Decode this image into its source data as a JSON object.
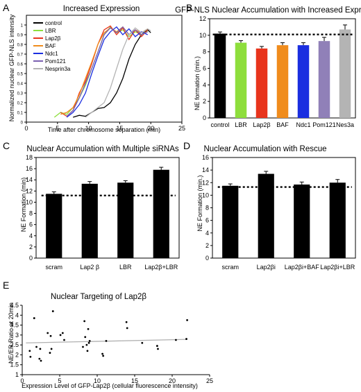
{
  "chart_data": [
    {
      "panel": "A",
      "type": "line",
      "title": "Increased Expression",
      "xlabel": "Time after chromosome separation (min)",
      "ylabel": "Normalized nuclear GFP-NLS intensity",
      "xlim": [
        0,
        25
      ],
      "ylim": [
        0,
        1.1
      ],
      "xticks": [
        0,
        5,
        10,
        15,
        20,
        25
      ],
      "yticks": [
        0,
        0.1,
        0.2,
        0.3,
        0.4,
        0.5,
        0.6,
        0.7,
        0.8,
        0.9,
        1
      ],
      "legend_position": "inside-top-left",
      "series": [
        {
          "name": "control",
          "color": "#000000",
          "x": [
            7.5,
            8.5,
            9.5,
            10.5,
            11.5,
            12.5,
            13.5,
            14.5,
            15.5,
            16.5,
            17.5,
            18.5,
            19.5,
            20
          ],
          "y": [
            0.05,
            0.07,
            0.06,
            0.1,
            0.14,
            0.15,
            0.2,
            0.3,
            0.45,
            0.65,
            0.8,
            0.9,
            0.95,
            0.92
          ]
        },
        {
          "name": "LBR",
          "color": "#8ede3c",
          "x": [
            4.5,
            5.5,
            6.5,
            7.5,
            8.5,
            9.5,
            10.5,
            11.5,
            12.5,
            13.5,
            14.5,
            15.5,
            16.5,
            17.5,
            18.5,
            19.5
          ],
          "y": [
            0.05,
            0.1,
            0.08,
            0.15,
            0.25,
            0.38,
            0.55,
            0.72,
            0.9,
            0.98,
            0.92,
            0.95,
            0.88,
            0.93,
            0.9,
            0.94
          ]
        },
        {
          "name": "Lap2β",
          "color": "#e8341c",
          "x": [
            5.5,
            6.5,
            7.5,
            8.5,
            9.5,
            10.5,
            11.5,
            12.5,
            13.5,
            14.5,
            15.5,
            16.5,
            17.5,
            18.5,
            19.5
          ],
          "y": [
            0.1,
            0.06,
            0.12,
            0.3,
            0.42,
            0.6,
            0.8,
            0.95,
            0.99,
            0.9,
            0.97,
            0.85,
            0.95,
            0.88,
            0.95
          ]
        },
        {
          "name": "BAF",
          "color": "#f08c1c",
          "x": [
            5.5,
            6.5,
            7.5,
            8.5,
            9.5,
            10.5,
            11.5,
            12.5,
            13.5,
            14.5,
            15.5,
            16.5,
            17.5,
            18.5,
            19.5
          ],
          "y": [
            0.08,
            0.1,
            0.15,
            0.28,
            0.45,
            0.62,
            0.8,
            0.92,
            0.97,
            0.93,
            0.98,
            0.9,
            0.95,
            0.92,
            0.96
          ]
        },
        {
          "name": "Ndc1",
          "color": "#1a2ee0",
          "x": [
            6.5,
            7.5,
            8.5,
            9.5,
            10.5,
            11.5,
            12.5,
            13.5,
            14.5,
            15.5,
            16.5,
            17.5,
            18.5,
            19.5
          ],
          "y": [
            0.05,
            0.1,
            0.18,
            0.3,
            0.5,
            0.68,
            0.85,
            0.93,
            0.98,
            0.9,
            0.96,
            0.88,
            0.93,
            0.9
          ]
        },
        {
          "name": "Pom121",
          "color": "#7a60b0",
          "x": [
            6.5,
            7.5,
            8.5,
            9.5,
            10.5,
            11.5,
            12.5,
            13.5,
            14.5,
            15.5,
            16.5,
            17.5,
            18.5,
            19.5
          ],
          "y": [
            0.06,
            0.12,
            0.25,
            0.4,
            0.55,
            0.72,
            0.9,
            0.97,
            0.92,
            0.98,
            0.9,
            0.95,
            0.9,
            0.93
          ]
        },
        {
          "name": "Nesprin3a",
          "color": "#b4b4b4",
          "x": [
            9.5,
            10.5,
            11.5,
            12.5,
            13.5,
            14.5,
            15.5,
            16.5,
            17.5,
            18.5,
            19.5,
            20
          ],
          "y": [
            0.05,
            0.1,
            0.15,
            0.2,
            0.35,
            0.55,
            0.75,
            0.9,
            0.97,
            0.92,
            0.96,
            0.94
          ]
        }
      ]
    },
    {
      "panel": "B",
      "type": "bar",
      "title": "GFP-NLS Nuclear Accumulation with Increased Expres.",
      "xlabel": "",
      "ylabel": "NE formation (min.)",
      "ylim": [
        0,
        12
      ],
      "yticks": [
        0,
        2,
        4,
        6,
        8,
        10,
        12
      ],
      "reference_line": 10.1,
      "categories": [
        "control",
        "LBR",
        "Lap2β",
        "BAF",
        "Ndc1",
        "Pom121",
        "Nes3a"
      ],
      "values": [
        10.2,
        9.1,
        8.4,
        8.8,
        8.8,
        9.3,
        10.7
      ],
      "errors": [
        0.2,
        0.25,
        0.25,
        0.3,
        0.3,
        0.45,
        0.55
      ],
      "colors": [
        "#000000",
        "#8ede3c",
        "#e8341c",
        "#f08c1c",
        "#1a2ee0",
        "#9080b8",
        "#b4b4b4"
      ]
    },
    {
      "panel": "C",
      "type": "bar",
      "title": "Nuclear Accumulation with Multiple siRNAs",
      "xlabel": "",
      "ylabel": "NE Formation (min)",
      "ylim": [
        0,
        18
      ],
      "yticks": [
        0,
        2,
        4,
        6,
        8,
        10,
        12,
        14,
        16,
        18
      ],
      "reference_line": 11.2,
      "categories": [
        "scram",
        "Lap2 β",
        "LBR",
        "Lap2β+LBR"
      ],
      "values": [
        11.5,
        13.3,
        13.5,
        15.8
      ],
      "errors": [
        0.35,
        0.4,
        0.35,
        0.45
      ],
      "colors": [
        "#000000",
        "#000000",
        "#000000",
        "#000000"
      ]
    },
    {
      "panel": "D",
      "type": "bar",
      "title": "Nuclear Accumulation with Rescue",
      "xlabel": "",
      "ylabel": "NE Formation (min.)",
      "ylim": [
        0,
        16
      ],
      "yticks": [
        0,
        2,
        4,
        6,
        8,
        10,
        12,
        14,
        16
      ],
      "reference_line": 11.3,
      "categories": [
        "scram",
        "Lap2βi",
        "Lap2βi+BAF",
        "Lap2βi+LBR"
      ],
      "values": [
        11.5,
        13.4,
        11.7,
        12.0
      ],
      "errors": [
        0.3,
        0.4,
        0.4,
        0.5
      ],
      "colors": [
        "#000000",
        "#000000",
        "#000000",
        "#000000"
      ]
    },
    {
      "panel": "E",
      "type": "scatter",
      "title": "Nuclear Targeting of Lap2β",
      "xlabel": "Expression Level of GFP-Lap2β (cellular fluorescence intensity)",
      "ylabel": "NE/ER Ratio at 20min",
      "xlim": [
        0,
        25
      ],
      "ylim": [
        1,
        4.5
      ],
      "xticks": [
        0,
        5,
        10,
        15,
        20,
        25
      ],
      "yticks": [
        1,
        1.5,
        2,
        2.5,
        3,
        3.5,
        4,
        4.5
      ],
      "trendline": {
        "x": [
          0.5,
          22
        ],
        "y": [
          2.6,
          2.78
        ],
        "color": "#b0b0b0"
      },
      "x": [
        1,
        1.1,
        1.6,
        1.9,
        2.3,
        2.4,
        2.5,
        3.4,
        3.7,
        3.8,
        3.9,
        4.1,
        5.1,
        5.4,
        5.6,
        8.1,
        8.3,
        8.4,
        8.6,
        8.7,
        8.8,
        8.9,
        9.0,
        10.7,
        10.8,
        11.2,
        13.9,
        14.0,
        16.0,
        18.0,
        18.1,
        20.5,
        21.9,
        22.0
      ],
      "y": [
        2.2,
        1.9,
        3.85,
        2.4,
        1.8,
        2.3,
        1.7,
        3.1,
        2.1,
        2.95,
        2.3,
        4.2,
        3.0,
        3.1,
        2.75,
        2.4,
        3.7,
        2.9,
        2.5,
        2.2,
        3.3,
        2.6,
        2.7,
        2.05,
        1.95,
        2.7,
        3.65,
        3.35,
        2.6,
        2.45,
        2.3,
        2.75,
        2.8,
        3.75
      ]
    }
  ],
  "panel_letters": [
    "A",
    "B",
    "C",
    "D",
    "E"
  ]
}
